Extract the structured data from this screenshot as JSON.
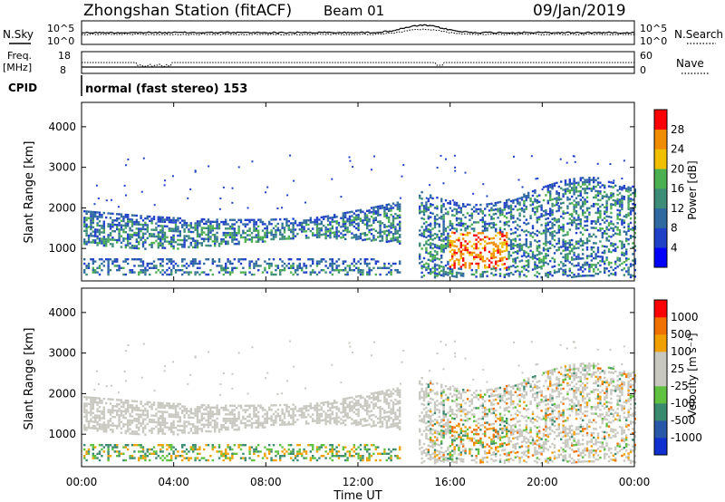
{
  "header": {
    "title": "Zhongshan Station (fitACF)",
    "beam": "Beam 01",
    "date": "09/Jan/2019"
  },
  "noise_panel": {
    "left_label": "N.Sky",
    "right_label": "N.Search",
    "left_ticks": [
      "10^5",
      "10^0"
    ],
    "right_ticks": [
      "10^5",
      "10^0"
    ]
  },
  "freq_panel": {
    "left_label_line1": "Freq.",
    "left_label_line2": "[MHz]",
    "right_label": "Nave",
    "left_ticks": [
      "18",
      "8"
    ],
    "right_ticks": [
      "60",
      "0"
    ]
  },
  "cpid": {
    "label": "CPID",
    "text": "normal (fast stereo) 153"
  },
  "chart_data": [
    {
      "type": "heatmap",
      "name": "power",
      "ylabel": "Slant Range [km]",
      "yticks": [
        "4000",
        "3000",
        "2000",
        "1000"
      ],
      "ylim": [
        200,
        4600
      ],
      "colorbar_label": "Power [dB]",
      "colorbar_ticks": [
        "28",
        "24",
        "20",
        "16",
        "12",
        "8",
        "4"
      ],
      "colors": [
        "#0000ff",
        "#2040c8",
        "#2e6aa0",
        "#3c8c78",
        "#4cb050",
        "#f0c000",
        "#f08c00",
        "#ff0000"
      ]
    },
    {
      "type": "heatmap",
      "name": "velocity",
      "ylabel": "Slant Range [km]",
      "yticks": [
        "4000",
        "3000",
        "2000",
        "1000"
      ],
      "ylim": [
        200,
        4600
      ],
      "colorbar_label": "Velocity [m s⁻¹]",
      "colorbar_ticks": [
        "1000",
        "500",
        "100",
        "25",
        "-25",
        "-100",
        "-500",
        "-1000"
      ],
      "colors": [
        "#1030d0",
        "#2a58a8",
        "#3a8a70",
        "#60c040",
        "#c8c8c0",
        "#c8c8c0",
        "#f0a000",
        "#f07000",
        "#ff0000"
      ]
    }
  ],
  "xaxis": {
    "label": "Time UT",
    "ticks": [
      "00:00",
      "04:00",
      "08:00",
      "12:00",
      "16:00",
      "20:00",
      "00:00"
    ]
  }
}
